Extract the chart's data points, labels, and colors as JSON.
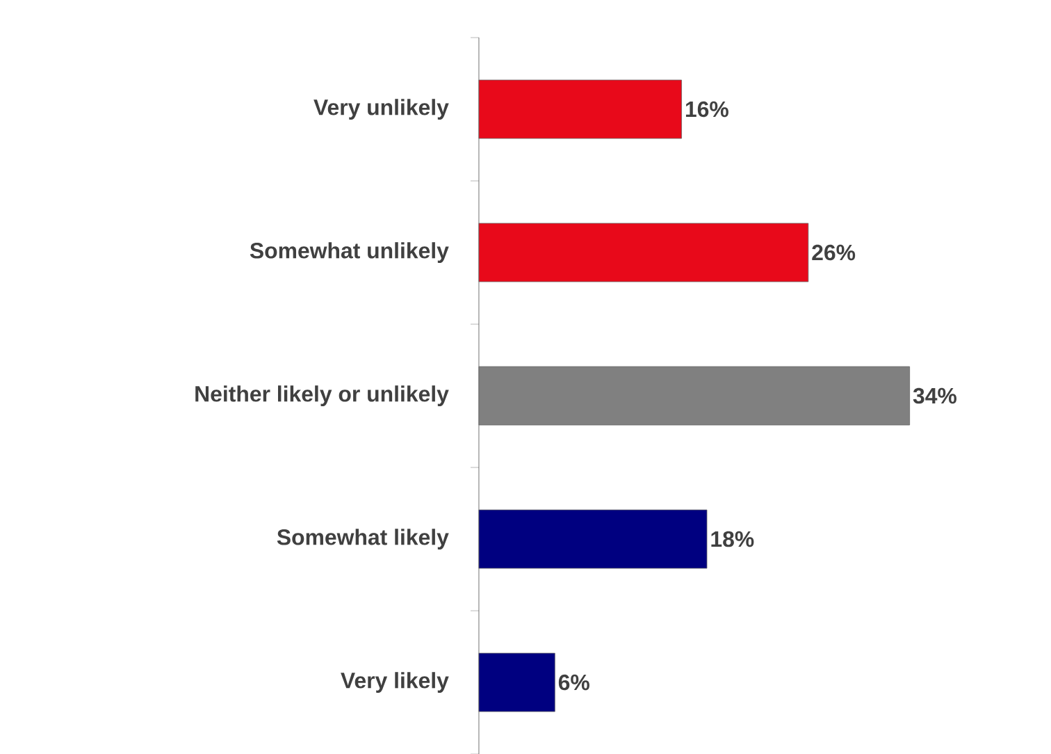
{
  "chart_data": {
    "type": "bar",
    "orientation": "horizontal",
    "categories": [
      "Very unlikely",
      "Somewhat unlikely",
      "Neither likely or unlikely",
      "Somewhat likely",
      "Very likely"
    ],
    "values": [
      16,
      26,
      34,
      18,
      6
    ],
    "colors": [
      "#e8091a",
      "#e8091a",
      "#808080",
      "#000080",
      "#000080"
    ],
    "value_labels": [
      "16%",
      "26%",
      "34%",
      "18%",
      "6%"
    ]
  }
}
